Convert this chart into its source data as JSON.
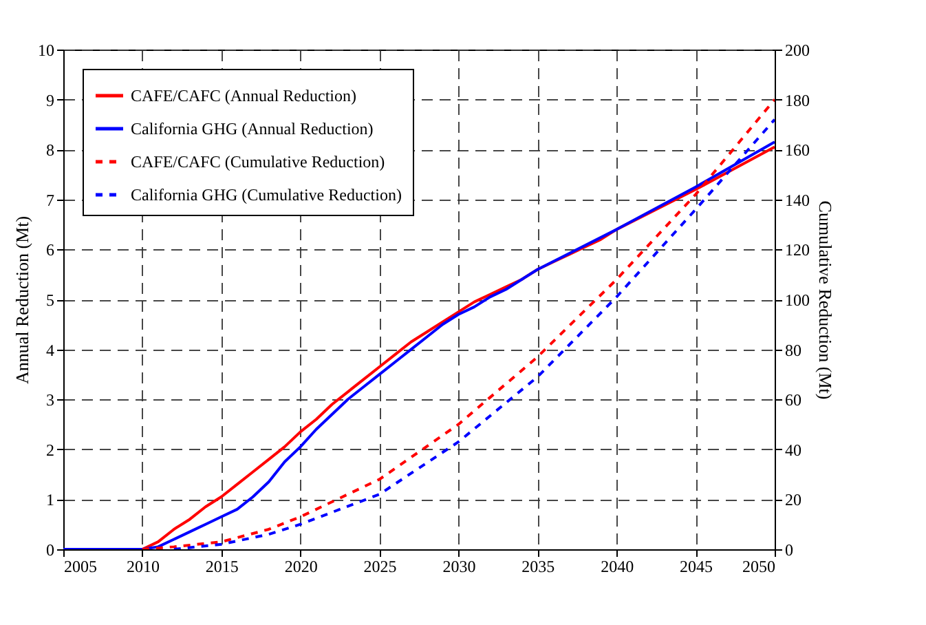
{
  "chart_data": {
    "type": "line",
    "xlabel": null,
    "ylabel": "Annual Reduction (Mt)",
    "y2label": "Cumulative Reduction (Mt)",
    "xlim": [
      2005,
      2050
    ],
    "xticks": [
      2005,
      2010,
      2015,
      2020,
      2025,
      2030,
      2035,
      2040,
      2045,
      2050
    ],
    "ylim": [
      0,
      10
    ],
    "yticks": [
      0,
      1,
      2,
      3,
      4,
      5,
      6,
      7,
      8,
      9,
      10
    ],
    "y2lim": [
      0,
      200
    ],
    "y2ticks": [
      0,
      20,
      40,
      60,
      80,
      100,
      120,
      140,
      160,
      180,
      200
    ],
    "grid": true,
    "legend": "top left",
    "series": [
      {
        "name": "CAFE/CAFC (Annual Reduction)",
        "color": "#ff0000",
        "line_style": "solid",
        "x": [
          2005,
          2010,
          2011,
          2012,
          2013,
          2014,
          2015,
          2016,
          2017,
          2018,
          2019,
          2020,
          2021,
          2022,
          2023,
          2024,
          2025,
          2026,
          2027,
          2028,
          2029,
          2030,
          2031,
          2032,
          2033,
          2034,
          2035,
          2036,
          2037,
          2038,
          2039,
          2040,
          2045,
          2050
        ],
        "values": [
          0,
          0,
          0.15,
          0.4,
          0.6,
          0.85,
          1.05,
          1.3,
          1.55,
          1.8,
          2.05,
          2.35,
          2.6,
          2.9,
          3.15,
          3.4,
          3.65,
          3.9,
          4.15,
          4.35,
          4.55,
          4.75,
          4.95,
          5.1,
          5.25,
          5.4,
          5.6,
          5.75,
          5.9,
          6.05,
          6.2,
          6.4,
          7.2,
          8.05
        ]
      },
      {
        "name": "California GHG (Annual Reduction)",
        "color": "#0000ff",
        "line_style": "solid",
        "x": [
          2005,
          2010,
          2011,
          2012,
          2013,
          2014,
          2015,
          2016,
          2017,
          2018,
          2019,
          2020,
          2021,
          2022,
          2023,
          2024,
          2025,
          2026,
          2027,
          2028,
          2029,
          2030,
          2031,
          2032,
          2033,
          2034,
          2035,
          2040,
          2045,
          2050
        ],
        "values": [
          0,
          0,
          0.05,
          0.2,
          0.35,
          0.5,
          0.65,
          0.8,
          1.05,
          1.35,
          1.75,
          2.05,
          2.4,
          2.7,
          3.0,
          3.25,
          3.5,
          3.75,
          4.0,
          4.25,
          4.5,
          4.7,
          4.85,
          5.05,
          5.2,
          5.4,
          5.6,
          6.4,
          7.25,
          8.15
        ]
      },
      {
        "name": "CAFE/CAFC (Cumulative Reduction)",
        "color": "#ff0000",
        "line_style": "dashed",
        "axis": "y2",
        "x": [
          2010,
          2012,
          2015,
          2018,
          2020,
          2025,
          2030,
          2035,
          2040,
          2045,
          2050
        ],
        "values": [
          0,
          1,
          3,
          8,
          13,
          28,
          50,
          77,
          108,
          142,
          180
        ]
      },
      {
        "name": "California GHG (Cumulative Reduction)",
        "color": "#0000ff",
        "line_style": "dashed",
        "axis": "y2",
        "x": [
          2012,
          2015,
          2018,
          2020,
          2025,
          2030,
          2035,
          2040,
          2045,
          2050
        ],
        "values": [
          0,
          2,
          6,
          10,
          22,
          43,
          69,
          101,
          136,
          172
        ]
      }
    ]
  }
}
